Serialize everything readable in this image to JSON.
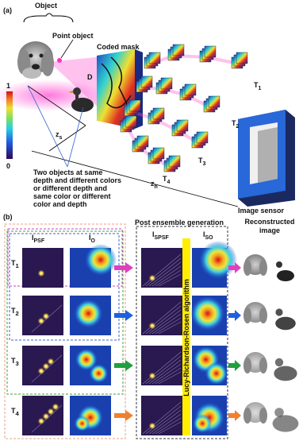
{
  "panel_a": {
    "label": "(a)",
    "object": "Object",
    "point_object": "Point object",
    "coded_mask": "Coded mask",
    "distance": "D",
    "z_s": {
      "base": "z",
      "sub": "s"
    },
    "z_h": {
      "base": "z",
      "sub": "h"
    },
    "colorbar_max": "1",
    "colorbar_min": "0",
    "psf_sets": [
      {
        "base": "T",
        "sub": "1"
      },
      {
        "base": "T",
        "sub": "2"
      },
      {
        "base": "T",
        "sub": "3"
      },
      {
        "base": "T",
        "sub": "4"
      }
    ],
    "note": [
      "Two objects at same",
      "depth and different colors",
      "or different depth and",
      "same color or different",
      "color and depth"
    ],
    "sensor": "Image sensor"
  },
  "panel_b": {
    "label": "(b)",
    "ensemble_title": "Post ensemble generation",
    "reconstructed_title": [
      "Reconstructed",
      "image"
    ],
    "algorithm": "Lucy-Richardson-Rosen algorithm",
    "col_psf": {
      "base": "I",
      "sub": "PSF"
    },
    "col_o": {
      "base": "I",
      "sub": "O"
    },
    "col_spsf": {
      "base": "I",
      "sub": "SPSF"
    },
    "col_so": {
      "base": "I",
      "sub": "SO"
    },
    "rows": [
      {
        "base": "T",
        "sub": "1"
      },
      {
        "base": "T",
        "sub": "2"
      },
      {
        "base": "T",
        "sub": "3"
      },
      {
        "base": "T",
        "sub": "4"
      }
    ]
  }
}
